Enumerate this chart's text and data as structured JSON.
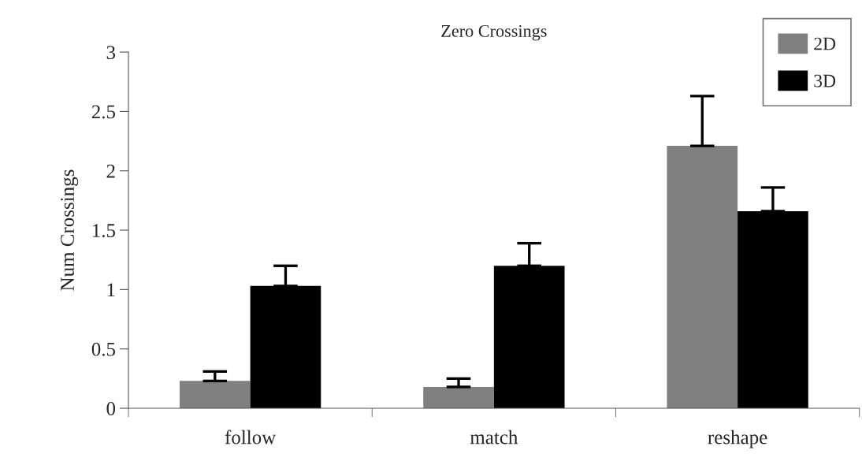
{
  "chart_data": {
    "type": "bar",
    "title": "Zero Crossings",
    "ylabel": "Num Crossings",
    "categories": [
      "follow",
      "match",
      "reshape"
    ],
    "series": [
      {
        "name": "2D",
        "color": "#808080",
        "values": [
          0.23,
          0.18,
          2.21
        ],
        "errors": [
          [
            0.23,
            0.31
          ],
          [
            0.18,
            0.25
          ],
          [
            2.21,
            2.63
          ]
        ]
      },
      {
        "name": "3D",
        "color": "#000000",
        "values": [
          1.03,
          1.2,
          1.66
        ],
        "errors": [
          [
            1.03,
            1.2
          ],
          [
            1.2,
            1.39
          ],
          [
            1.66,
            1.86
          ]
        ]
      }
    ],
    "ylim": [
      0,
      3
    ],
    "yticks": [
      0,
      0.5,
      1,
      1.5,
      2,
      2.5,
      3
    ],
    "grid": false,
    "legend": "top right"
  }
}
